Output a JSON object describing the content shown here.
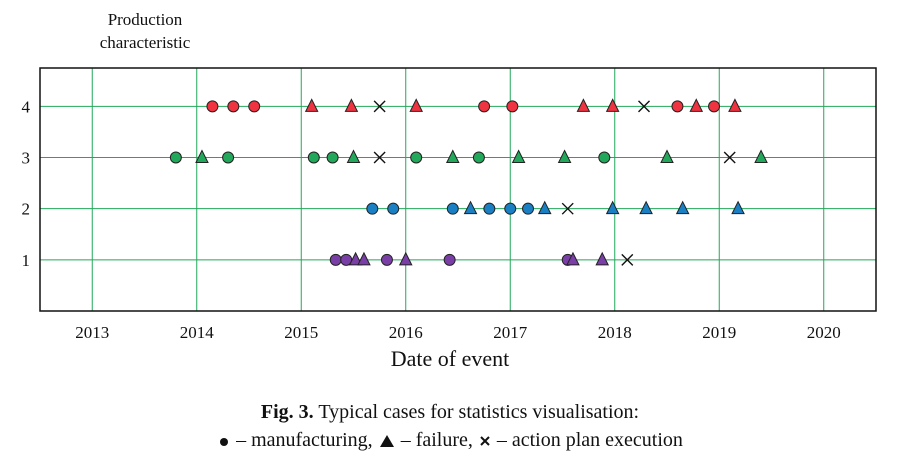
{
  "chart_data": {
    "type": "scatter",
    "title": "",
    "ylabel": "Production characteristic",
    "xlabel": "Date of event",
    "xlim": [
      2012.5,
      2020.5
    ],
    "ylim": [
      0,
      4.75
    ],
    "x_ticks": [
      "2013",
      "2014",
      "2015",
      "2016",
      "2017",
      "2018",
      "2019",
      "2020"
    ],
    "y_ticks": [
      "1",
      "2",
      "3",
      "4"
    ],
    "grid": true,
    "series": [
      {
        "name": "manufacturing",
        "marker": "circle",
        "points": [
          {
            "x": 2014.15,
            "y": 4,
            "color": "#ef3340"
          },
          {
            "x": 2014.35,
            "y": 4,
            "color": "#ef3340"
          },
          {
            "x": 2014.55,
            "y": 4,
            "color": "#ef3340"
          },
          {
            "x": 2016.75,
            "y": 4,
            "color": "#ef3340"
          },
          {
            "x": 2017.02,
            "y": 4,
            "color": "#ef3340"
          },
          {
            "x": 2018.6,
            "y": 4,
            "color": "#ef3340"
          },
          {
            "x": 2018.95,
            "y": 4,
            "color": "#ef3340"
          },
          {
            "x": 2013.8,
            "y": 3,
            "color": "#22a85a"
          },
          {
            "x": 2014.3,
            "y": 3,
            "color": "#22a85a"
          },
          {
            "x": 2015.12,
            "y": 3,
            "color": "#22a85a"
          },
          {
            "x": 2015.3,
            "y": 3,
            "color": "#22a85a"
          },
          {
            "x": 2016.1,
            "y": 3,
            "color": "#22a85a"
          },
          {
            "x": 2016.7,
            "y": 3,
            "color": "#22a85a"
          },
          {
            "x": 2017.9,
            "y": 3,
            "color": "#22a85a"
          },
          {
            "x": 2015.68,
            "y": 2,
            "color": "#1b7fc4"
          },
          {
            "x": 2015.88,
            "y": 2,
            "color": "#1b7fc4"
          },
          {
            "x": 2016.45,
            "y": 2,
            "color": "#1b7fc4"
          },
          {
            "x": 2016.8,
            "y": 2,
            "color": "#1b7fc4"
          },
          {
            "x": 2017.0,
            "y": 2,
            "color": "#1b7fc4"
          },
          {
            "x": 2017.17,
            "y": 2,
            "color": "#1b7fc4"
          },
          {
            "x": 2015.33,
            "y": 1,
            "color": "#7a3fa6"
          },
          {
            "x": 2015.43,
            "y": 1,
            "color": "#7a3fa6"
          },
          {
            "x": 2015.82,
            "y": 1,
            "color": "#7a3fa6"
          },
          {
            "x": 2016.42,
            "y": 1,
            "color": "#7a3fa6"
          },
          {
            "x": 2017.55,
            "y": 1,
            "color": "#7a3fa6"
          }
        ]
      },
      {
        "name": "failure",
        "marker": "triangle",
        "points": [
          {
            "x": 2015.1,
            "y": 4,
            "color": "#ef3340"
          },
          {
            "x": 2015.48,
            "y": 4,
            "color": "#ef3340"
          },
          {
            "x": 2016.1,
            "y": 4,
            "color": "#ef3340"
          },
          {
            "x": 2017.7,
            "y": 4,
            "color": "#ef3340"
          },
          {
            "x": 2017.98,
            "y": 4,
            "color": "#ef3340"
          },
          {
            "x": 2018.78,
            "y": 4,
            "color": "#ef3340"
          },
          {
            "x": 2019.15,
            "y": 4,
            "color": "#ef3340"
          },
          {
            "x": 2014.05,
            "y": 3,
            "color": "#22a85a"
          },
          {
            "x": 2015.5,
            "y": 3,
            "color": "#22a85a"
          },
          {
            "x": 2016.45,
            "y": 3,
            "color": "#22a85a"
          },
          {
            "x": 2017.08,
            "y": 3,
            "color": "#22a85a"
          },
          {
            "x": 2017.52,
            "y": 3,
            "color": "#22a85a"
          },
          {
            "x": 2018.5,
            "y": 3,
            "color": "#22a85a"
          },
          {
            "x": 2019.4,
            "y": 3,
            "color": "#22a85a"
          },
          {
            "x": 2016.62,
            "y": 2,
            "color": "#1b7fc4"
          },
          {
            "x": 2017.33,
            "y": 2,
            "color": "#1b7fc4"
          },
          {
            "x": 2017.98,
            "y": 2,
            "color": "#1b7fc4"
          },
          {
            "x": 2018.3,
            "y": 2,
            "color": "#1b7fc4"
          },
          {
            "x": 2018.65,
            "y": 2,
            "color": "#1b7fc4"
          },
          {
            "x": 2019.18,
            "y": 2,
            "color": "#1b7fc4"
          },
          {
            "x": 2015.52,
            "y": 1,
            "color": "#7a3fa6"
          },
          {
            "x": 2015.6,
            "y": 1,
            "color": "#7a3fa6"
          },
          {
            "x": 2016.0,
            "y": 1,
            "color": "#7a3fa6"
          },
          {
            "x": 2017.6,
            "y": 1,
            "color": "#7a3fa6"
          },
          {
            "x": 2017.88,
            "y": 1,
            "color": "#7a3fa6"
          }
        ]
      },
      {
        "name": "action plan execution",
        "marker": "cross",
        "points": [
          {
            "x": 2015.75,
            "y": 4,
            "color": "#111111"
          },
          {
            "x": 2018.28,
            "y": 4,
            "color": "#111111"
          },
          {
            "x": 2015.75,
            "y": 3,
            "color": "#111111"
          },
          {
            "x": 2019.1,
            "y": 3,
            "color": "#111111"
          },
          {
            "x": 2017.55,
            "y": 2,
            "color": "#111111"
          },
          {
            "x": 2018.12,
            "y": 1,
            "color": "#111111"
          }
        ]
      }
    ],
    "colors": {
      "grid": "#22a85a",
      "axis": "#111111"
    }
  },
  "caption": {
    "fig_label": "Fig. 3.",
    "line1": " Typical cases for statistics visualisation:",
    "legend": [
      {
        "marker": "circle",
        "text": " – manufacturing, "
      },
      {
        "marker": "triangle",
        "text": " – failure, "
      },
      {
        "marker": "cross",
        "text": " – action plan execution"
      }
    ]
  },
  "labels": {
    "ylabel_line1": "Production",
    "ylabel_line2": "characteristic"
  }
}
